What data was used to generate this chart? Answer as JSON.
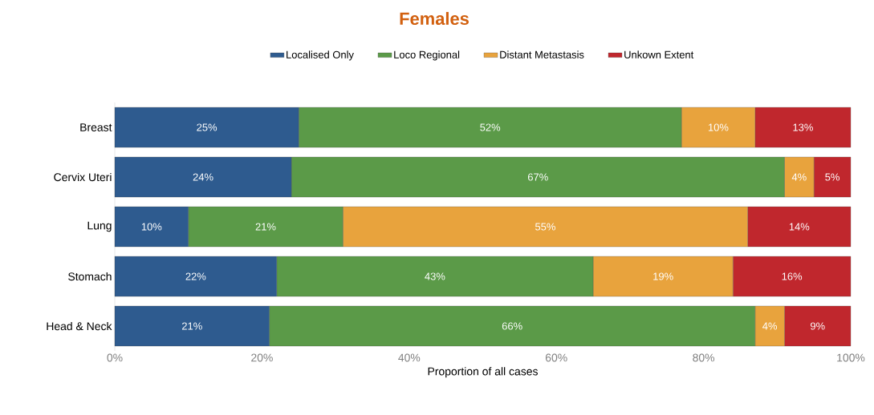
{
  "chart_data": {
    "type": "bar",
    "orientation": "horizontal",
    "stacked": true,
    "title": "Females",
    "xlabel": "Proportion of all cases",
    "categories": [
      "Breast",
      "Cervix Uteri",
      "Lung",
      "Stomach",
      "Head & Neck"
    ],
    "series": [
      {
        "name": "Localised Only",
        "color": "#2e5b8f",
        "values": [
          25,
          24,
          10,
          22,
          21
        ],
        "value_labels": [
          "25%",
          "24%",
          "10%",
          "22%",
          "21%"
        ]
      },
      {
        "name": "Loco Regional",
        "color": "#5b9a48",
        "values": [
          52,
          67,
          21,
          43,
          66
        ],
        "value_labels": [
          "52%",
          "67%",
          "21%",
          "43%",
          "66%"
        ]
      },
      {
        "name": "Distant Metastasis",
        "color": "#e8a33d",
        "values": [
          10,
          4,
          55,
          19,
          4
        ],
        "value_labels": [
          "10%",
          "4%",
          "55%",
          "19%",
          "4%"
        ]
      },
      {
        "name": "Unkown Extent",
        "color": "#c0272d",
        "values": [
          13,
          5,
          14,
          16,
          9
        ],
        "value_labels": [
          "13%",
          "5%",
          "14%",
          "16%",
          "9%"
        ]
      }
    ],
    "xlim": [
      0,
      100
    ],
    "xticks": [
      {
        "value": 0,
        "label": "0%"
      },
      {
        "value": 20,
        "label": "20%"
      },
      {
        "value": 40,
        "label": "40%"
      },
      {
        "value": 60,
        "label": "60%"
      },
      {
        "value": 80,
        "label": "80%"
      },
      {
        "value": 100,
        "label": "100%"
      }
    ],
    "legend": "top"
  }
}
